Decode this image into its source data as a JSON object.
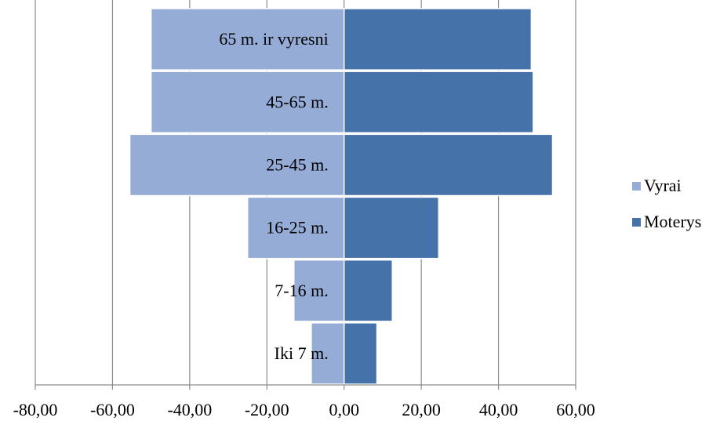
{
  "chart_data": {
    "type": "bar",
    "orientation": "horizontal",
    "layout": "population-pyramid",
    "categories": [
      "Iki 7 m.",
      "7-16 m.",
      "16-25 m.",
      "25-45 m.",
      "45-65 m.",
      "65 m. ir vyresni"
    ],
    "series": [
      {
        "name": "Vyrai",
        "color": "#95acd6",
        "values": [
          -8.5,
          -13,
          -25,
          -55.5,
          -50,
          -50
        ]
      },
      {
        "name": "Moterys",
        "color": "#4672aa",
        "values": [
          8.5,
          12.5,
          24.5,
          54,
          49,
          48.5
        ]
      }
    ],
    "xlim": [
      -80,
      60
    ],
    "xticks": [
      -80,
      -60,
      -40,
      -20,
      0,
      20,
      40,
      60
    ],
    "xtick_labels": [
      "-80,00",
      "-60,00",
      "-40,00",
      "-20,00",
      "0,00",
      "20,00",
      "40,00",
      "60,00"
    ],
    "grid": true,
    "legend_position": "right",
    "title": "",
    "xlabel": "",
    "ylabel": ""
  }
}
